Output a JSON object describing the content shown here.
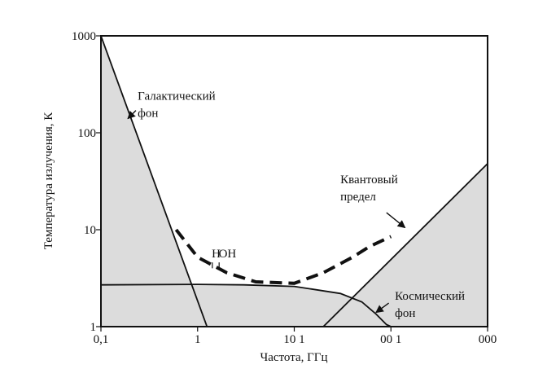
{
  "chart_data": {
    "type": "line",
    "xlabel": "Частота, ГГц",
    "ylabel": "Температура излучения, К",
    "x_scale": "log",
    "y_scale": "log",
    "xlim": [
      0.1,
      1000
    ],
    "ylim": [
      1,
      1000
    ],
    "x_tick_labels": [
      "0,1",
      "1",
      "10 1",
      "00 1",
      "000"
    ],
    "y_tick_labels": [
      "1",
      "10",
      "100",
      "1000"
    ],
    "grid": false,
    "series": [
      {
        "name": "Галактический фон",
        "style": "solid-shaded",
        "x": [
          0.1,
          1.25
        ],
        "y": [
          1000,
          1
        ]
      },
      {
        "name": "Космический фон",
        "style": "solid-shaded",
        "x": [
          0.1,
          1,
          3,
          10,
          30,
          50,
          70,
          90,
          100
        ],
        "y": [
          2.7,
          2.73,
          2.7,
          2.6,
          2.2,
          1.8,
          1.35,
          1.05,
          1
        ]
      },
      {
        "name": "Квантовый предел",
        "style": "solid-shaded",
        "x": [
          20,
          1000
        ],
        "y": [
          1,
          48
        ]
      },
      {
        "name": "",
        "style": "dashed",
        "x": [
          0.6,
          1,
          2,
          4,
          10,
          20,
          40,
          60,
          100
        ],
        "y": [
          10,
          5.2,
          3.6,
          2.9,
          2.8,
          3.6,
          5.2,
          6.7,
          8.5
        ]
      }
    ],
    "annotations": [
      {
        "lines": [
          "Галактический",
          "фон"
        ],
        "x": 0.24,
        "y": 220
      },
      {
        "lines": [
          "Квантовый",
          "предел"
        ],
        "x": 30,
        "y": 30
      },
      {
        "lines": [
          "Космический",
          "фон"
        ],
        "x": 110,
        "y": 1.9
      },
      {
        "lines": [
          "H"
        ],
        "x": 1.4,
        "y": 5.2
      },
      {
        "lines": [
          "OH"
        ],
        "x": 1.65,
        "y": 5.2
      }
    ],
    "colors": {
      "shade": "#dcdcdc",
      "line": "#111111"
    }
  }
}
